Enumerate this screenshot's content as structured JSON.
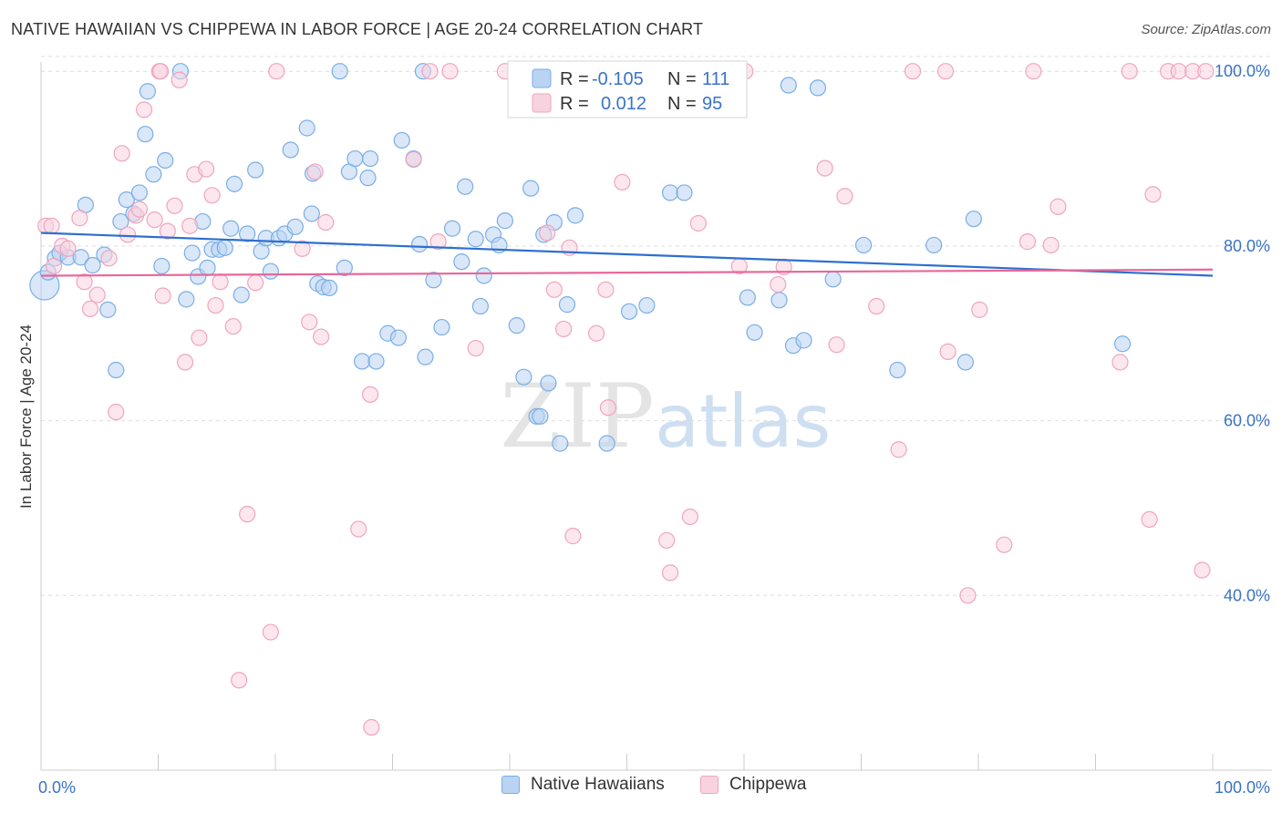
{
  "header": {
    "title": "NATIVE HAWAIIAN VS CHIPPEWA IN LABOR FORCE | AGE 20-24 CORRELATION CHART",
    "source": "Source: ZipAtlas.com"
  },
  "watermark": {
    "zip": "ZIP",
    "atlas": "atlas"
  },
  "chart_data": {
    "type": "scatter",
    "title": "NATIVE HAWAIIAN VS CHIPPEWA IN LABOR FORCE | AGE 20-24 CORRELATION CHART",
    "xlabel": "",
    "ylabel": "In Labor Force | Age 20-24",
    "xlim": [
      0,
      100
    ],
    "ylim": [
      20,
      102
    ],
    "x_tick_labels": [
      "0.0%",
      "100.0%"
    ],
    "y_ticks": [
      40,
      60,
      80,
      100
    ],
    "y_tick_labels": [
      "40.0%",
      "60.0%",
      "80.0%",
      "100.0%"
    ],
    "grid": true,
    "legend": [
      {
        "name": "Native Hawaiians",
        "r_label": "R =",
        "r_value": "-0.105",
        "n_label": "N =",
        "n_value": "111"
      },
      {
        "name": "Chippewa",
        "r_label": "R =",
        "r_value": "0.012",
        "n_label": "N =",
        "n_value": "95"
      }
    ],
    "series": [
      {
        "name": "Native Hawaiians",
        "color": "#7aaee6",
        "fill": "#b9d3f3",
        "line_color": "#2d6fd0",
        "trend": {
          "x": [
            0,
            100
          ],
          "y": [
            81.5,
            76.6
          ]
        },
        "points": [
          [
            0.3,
            75.5,
            "L"
          ],
          [
            0.6,
            77
          ],
          [
            1.2,
            78.6
          ],
          [
            1.6,
            79.2
          ],
          [
            2.3,
            78.7
          ],
          [
            3.4,
            78.7
          ],
          [
            3.8,
            84.7
          ],
          [
            4.4,
            77.8
          ],
          [
            5.4,
            79
          ],
          [
            5.7,
            72.7
          ],
          [
            6.4,
            65.8
          ],
          [
            6.8,
            82.8
          ],
          [
            7.3,
            85.3
          ],
          [
            7.9,
            83.7
          ],
          [
            8.4,
            86.1
          ],
          [
            8.9,
            92.8
          ],
          [
            9.1,
            97.7
          ],
          [
            9.6,
            88.2
          ],
          [
            10.3,
            77.7
          ],
          [
            10.6,
            89.8
          ],
          [
            11.9,
            100
          ],
          [
            12.4,
            73.9
          ],
          [
            12.9,
            79.2
          ],
          [
            13.4,
            76.5
          ],
          [
            13.8,
            82.8
          ],
          [
            14.2,
            77.5
          ],
          [
            14.6,
            79.6
          ],
          [
            15.2,
            79.6
          ],
          [
            15.7,
            79.8
          ],
          [
            16.2,
            82
          ],
          [
            16.5,
            87.1
          ],
          [
            17.1,
            74.4
          ],
          [
            17.6,
            81.4
          ],
          [
            18.3,
            88.7
          ],
          [
            18.8,
            79.4
          ],
          [
            19.2,
            80.9
          ],
          [
            19.6,
            77.1
          ],
          [
            20.3,
            80.9
          ],
          [
            20.8,
            81.4
          ],
          [
            21.3,
            91
          ],
          [
            21.7,
            82.2
          ],
          [
            22.7,
            93.5
          ],
          [
            23.1,
            83.7
          ],
          [
            23.2,
            88.3
          ],
          [
            23.6,
            75.7
          ],
          [
            24.1,
            75.3
          ],
          [
            24.6,
            75.2
          ],
          [
            25.5,
            100
          ],
          [
            25.9,
            77.5
          ],
          [
            26.3,
            88.5
          ],
          [
            26.8,
            90
          ],
          [
            27.4,
            66.8
          ],
          [
            27.9,
            87.8
          ],
          [
            28.1,
            90
          ],
          [
            28.6,
            66.8
          ],
          [
            29.6,
            70
          ],
          [
            30.5,
            69.5
          ],
          [
            30.8,
            92.1
          ],
          [
            31.8,
            90
          ],
          [
            32.3,
            80.2
          ],
          [
            32.6,
            100
          ],
          [
            32.8,
            67.3
          ],
          [
            33.5,
            76.1
          ],
          [
            34.2,
            70.7
          ],
          [
            35.1,
            82
          ],
          [
            35.9,
            78.2
          ],
          [
            36.2,
            86.8
          ],
          [
            37.1,
            80.8
          ],
          [
            37.5,
            73.1
          ],
          [
            37.8,
            76.6
          ],
          [
            38.6,
            81.3
          ],
          [
            39.1,
            80.1
          ],
          [
            39.6,
            82.9
          ],
          [
            40.6,
            70.9
          ],
          [
            41.2,
            65
          ],
          [
            41.8,
            86.6
          ],
          [
            42.3,
            60.5
          ],
          [
            42.6,
            60.5
          ],
          [
            42.9,
            81.3
          ],
          [
            43.3,
            64.3
          ],
          [
            43.8,
            82.7
          ],
          [
            44.3,
            57.4
          ],
          [
            44.9,
            73.3
          ],
          [
            45.6,
            83.5
          ],
          [
            48.3,
            57.4
          ],
          [
            50.2,
            72.5
          ],
          [
            51.7,
            73.2
          ],
          [
            53.7,
            86.1
          ],
          [
            54.9,
            86.1
          ],
          [
            57.8,
            100
          ],
          [
            60.3,
            74.1
          ],
          [
            60.9,
            70.1
          ],
          [
            63,
            73.8
          ],
          [
            63.8,
            98.4
          ],
          [
            64.2,
            68.6
          ],
          [
            65.1,
            69.2
          ],
          [
            66.3,
            98.1
          ],
          [
            67.6,
            76.2
          ],
          [
            70.2,
            80.1
          ],
          [
            73.1,
            65.8
          ],
          [
            76.2,
            80.1
          ],
          [
            78.9,
            66.7
          ],
          [
            79.6,
            83.1
          ],
          [
            92.3,
            68.8
          ]
        ]
      },
      {
        "name": "Chippewa",
        "color": "#f0a5be",
        "fill": "#f8d3df",
        "line_color": "#e8679a",
        "trend": {
          "x": [
            0,
            100
          ],
          "y": [
            76.6,
            77.3
          ]
        },
        "points": [
          [
            0.4,
            82.3
          ],
          [
            0.9,
            82.3
          ],
          [
            1.1,
            77.7
          ],
          [
            1.8,
            80
          ],
          [
            2.3,
            79.7
          ],
          [
            3.3,
            83.2
          ],
          [
            3.7,
            75.9
          ],
          [
            4.2,
            72.8
          ],
          [
            4.8,
            74.4
          ],
          [
            5.8,
            78.6
          ],
          [
            6.4,
            61
          ],
          [
            6.9,
            90.6
          ],
          [
            7.4,
            81.3
          ],
          [
            8.1,
            83.5
          ],
          [
            8.4,
            84.2
          ],
          [
            8.8,
            95.6
          ],
          [
            9.7,
            83
          ],
          [
            10.1,
            100
          ],
          [
            10.2,
            100
          ],
          [
            10.4,
            74.3
          ],
          [
            10.8,
            81.7
          ],
          [
            11.4,
            84.6
          ],
          [
            11.8,
            99
          ],
          [
            12.3,
            66.7
          ],
          [
            12.7,
            82.3
          ],
          [
            13.1,
            88.2
          ],
          [
            13.5,
            69.5
          ],
          [
            14.1,
            88.8
          ],
          [
            14.6,
            85.8
          ],
          [
            14.9,
            73.2
          ],
          [
            15.3,
            75.9
          ],
          [
            16.4,
            70.8
          ],
          [
            16.9,
            30.3
          ],
          [
            17.6,
            49.3
          ],
          [
            18.3,
            75.8
          ],
          [
            19.6,
            35.8
          ],
          [
            20.1,
            100
          ],
          [
            22.3,
            79.7
          ],
          [
            22.9,
            71.3
          ],
          [
            23.4,
            88.5
          ],
          [
            23.9,
            69.6
          ],
          [
            24.3,
            82.7
          ],
          [
            27.1,
            47.6
          ],
          [
            28.1,
            63
          ],
          [
            28.2,
            24.9
          ],
          [
            31.8,
            89.9
          ],
          [
            33.2,
            100
          ],
          [
            33.9,
            80.5
          ],
          [
            34.9,
            100
          ],
          [
            37.1,
            68.3
          ],
          [
            39.6,
            100
          ],
          [
            40.8,
            99.7
          ],
          [
            43.2,
            81.5
          ],
          [
            43.8,
            75
          ],
          [
            44.6,
            70.5
          ],
          [
            45.1,
            79.8
          ],
          [
            45.4,
            46.8
          ],
          [
            46.2,
            99.6
          ],
          [
            46.9,
            96.6
          ],
          [
            47.4,
            70
          ],
          [
            48.2,
            75
          ],
          [
            48.4,
            61.5
          ],
          [
            49.6,
            87.3
          ],
          [
            53.4,
            46.3
          ],
          [
            53.7,
            42.6
          ],
          [
            55.4,
            49
          ],
          [
            56.1,
            82.6
          ],
          [
            59.6,
            77.7
          ],
          [
            60.1,
            100
          ],
          [
            62.9,
            75.6
          ],
          [
            63.4,
            77.6
          ],
          [
            66.9,
            88.9
          ],
          [
            67.9,
            68.7
          ],
          [
            68.6,
            85.7
          ],
          [
            71.3,
            73.1
          ],
          [
            73.2,
            56.7
          ],
          [
            74.4,
            100
          ],
          [
            77.2,
            100
          ],
          [
            77.4,
            67.9
          ],
          [
            79.1,
            40
          ],
          [
            80.1,
            72.7
          ],
          [
            82.2,
            45.8
          ],
          [
            84.2,
            80.5
          ],
          [
            84.7,
            100
          ],
          [
            86.2,
            80.1
          ],
          [
            86.8,
            84.5
          ],
          [
            92.1,
            66.7
          ],
          [
            92.9,
            100
          ],
          [
            94.6,
            48.7
          ],
          [
            94.9,
            85.9
          ],
          [
            96.2,
            100
          ],
          [
            97.1,
            100
          ],
          [
            98.3,
            100
          ],
          [
            99.1,
            42.9
          ],
          [
            99.4,
            100
          ]
        ]
      }
    ]
  }
}
